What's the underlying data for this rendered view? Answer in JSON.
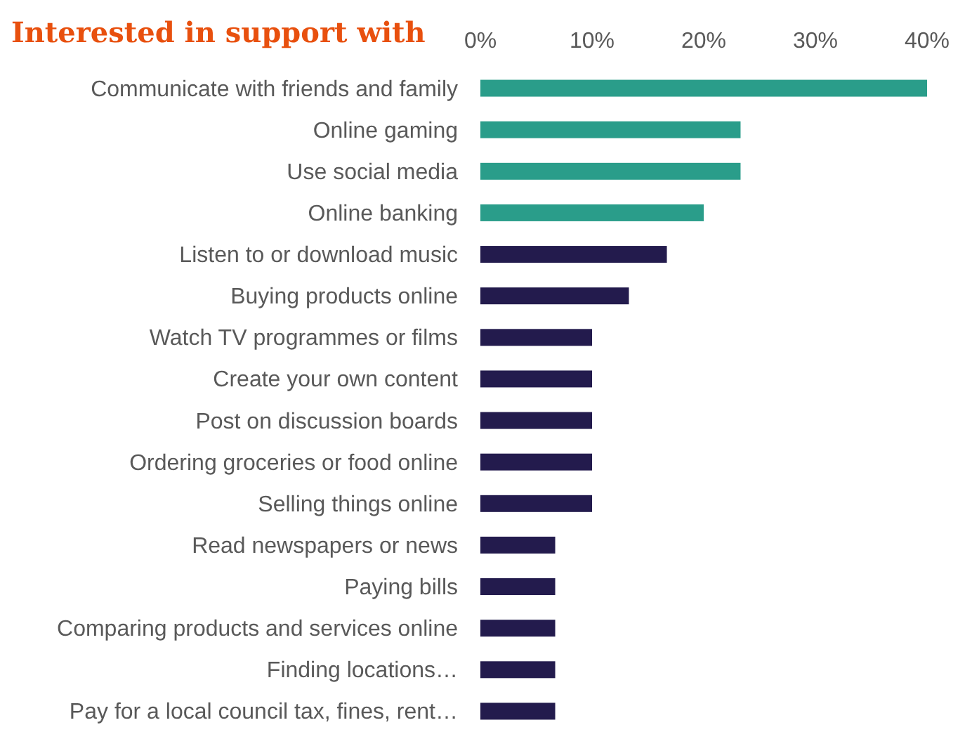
{
  "chart_data": {
    "type": "bar",
    "orientation": "horizontal",
    "title": "Interested in support with",
    "categories": [
      "Communicate with friends and family",
      "Online gaming",
      "Use social media",
      "Online banking",
      "Listen to or download music",
      "Buying products online",
      "Watch TV programmes or films",
      "Create your own content",
      "Post on discussion boards",
      "Ordering groceries or food online",
      "Selling things online",
      "Read newspapers or news",
      "Paying bills",
      "Comparing products and services online",
      "Finding locations…",
      "Pay for a local council tax, fines, rent…"
    ],
    "values": [
      40,
      23.3,
      23.3,
      20,
      16.7,
      13.3,
      10,
      10,
      10,
      10,
      10,
      6.7,
      6.7,
      6.7,
      6.7,
      6.7
    ],
    "colors": [
      "#2a9d8a",
      "#2a9d8a",
      "#2a9d8a",
      "#2a9d8a",
      "#231b4d",
      "#231b4d",
      "#231b4d",
      "#231b4d",
      "#231b4d",
      "#231b4d",
      "#231b4d",
      "#231b4d",
      "#231b4d",
      "#231b4d",
      "#231b4d",
      "#231b4d"
    ],
    "xlim": [
      0,
      40
    ],
    "xticks": [
      {
        "value": 0,
        "label": "0%"
      },
      {
        "value": 10,
        "label": "10%"
      },
      {
        "value": 20,
        "label": "20%"
      },
      {
        "value": 30,
        "label": "30%"
      },
      {
        "value": 40,
        "label": "40%"
      }
    ],
    "grid": false
  }
}
